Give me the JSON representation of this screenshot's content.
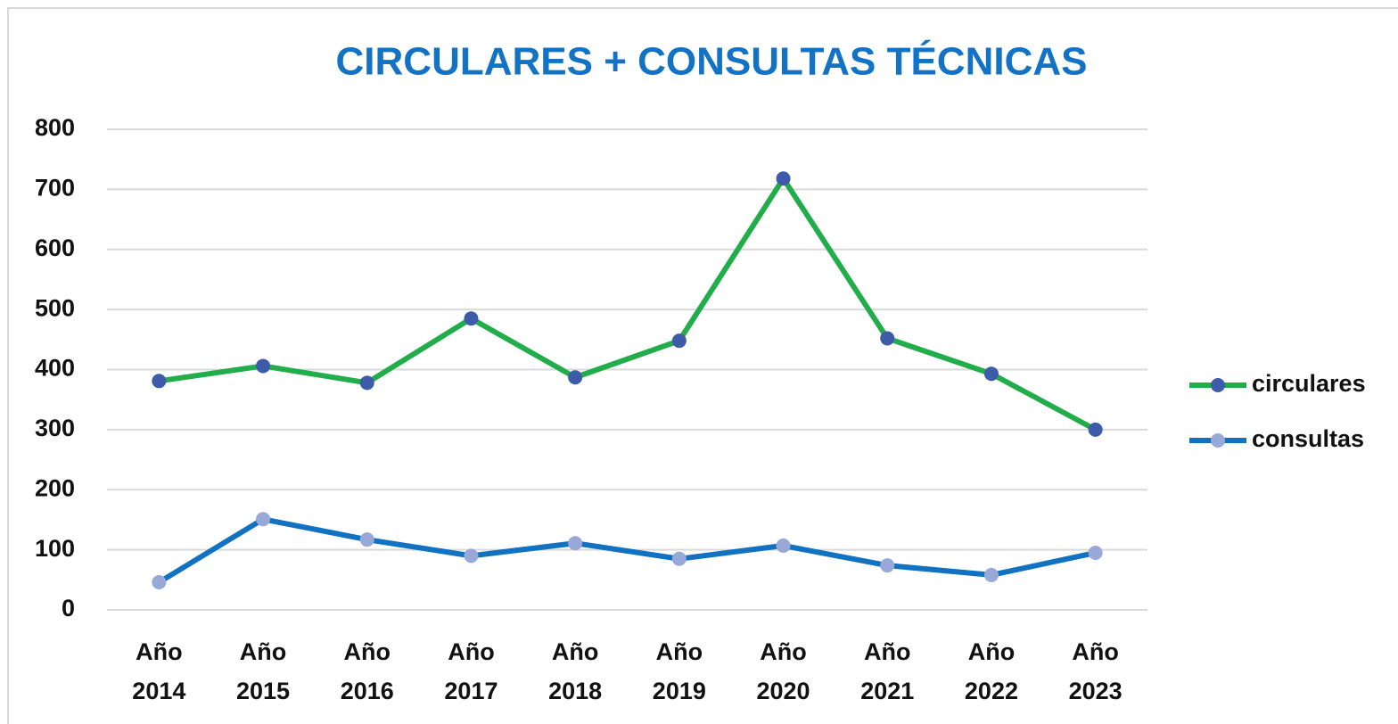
{
  "chart_data": {
    "type": "line",
    "title": "CIRCULARES + CONSULTAS TÉCNICAS",
    "categories": [
      "Año 2014",
      "Año 2015",
      "Año 2016",
      "Año 2017",
      "Año 2018",
      "Año 2019",
      "Año 2020",
      "Año 2021",
      "Año 2022",
      "Año 2023"
    ],
    "series": [
      {
        "name": "circulares",
        "color": "#22ad4b",
        "marker_color": "#3d5ba9",
        "values": [
          381,
          406,
          378,
          485,
          387,
          448,
          718,
          452,
          393,
          300
        ]
      },
      {
        "name": "consultas",
        "color": "#1272c2",
        "marker_color": "#98a8d8",
        "values": [
          46,
          151,
          117,
          90,
          111,
          85,
          107,
          74,
          58,
          95
        ]
      }
    ],
    "ylim": [
      0,
      800
    ],
    "yticks": [
      0,
      100,
      200,
      300,
      400,
      500,
      600,
      700,
      800
    ],
    "grid": true,
    "legend": "right"
  }
}
